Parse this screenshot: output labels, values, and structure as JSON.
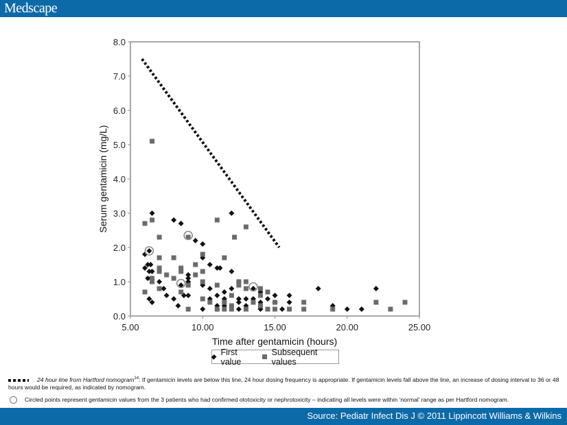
{
  "header": {
    "brand": "Medscape"
  },
  "footer": {
    "source": "Source: Pediatr Infect Dis J © 2011 Lippincott Williams & Wilkins"
  },
  "legend": {
    "first": "First value",
    "subsequent": "Subsequent values"
  },
  "footnotes": {
    "line_label": "24 hour line from Hartford nomogram",
    "line_sup": "14",
    "line_text": ": If gentamicin levels are below this line,  24 hour dosing frequency is appropriate. If gentamicin levels fall above the line, an increase of dosing interval to 36 or 48 hours would be required, as indicated by nomogram.",
    "circle_text": "Circled points represent gentamicin values from the 3 patients who had confirmed ototoxicity or nephrotoxicity – indicating all levels were within ‘normal’ range as per Hartford nomogram."
  },
  "chart_data": {
    "type": "scatter",
    "title": "",
    "xlabel": "Time after gentamicin (hours)",
    "ylabel": "Serum gentamicin (mg/L)",
    "xlim": [
      5,
      25
    ],
    "ylim": [
      0,
      8
    ],
    "x_ticks": [
      "5.00",
      "10.00",
      "15.00",
      "20.00",
      "25.00"
    ],
    "y_ticks": [
      "0.0",
      "1.0",
      "2.0",
      "3.0",
      "4.0",
      "5.0",
      "6.0",
      "7.0",
      "8.0"
    ],
    "grid": false,
    "legend_position": "bottom",
    "series": [
      {
        "name": "First value",
        "marker": "diamond",
        "color": "#111111",
        "points": [
          [
            6.0,
            1.8
          ],
          [
            6.0,
            1.4
          ],
          [
            6.2,
            1.5
          ],
          [
            6.3,
            1.3
          ],
          [
            6.4,
            1.5
          ],
          [
            6.5,
            1.3
          ],
          [
            6.2,
            1.1
          ],
          [
            6.4,
            1.1
          ],
          [
            6.3,
            0.5
          ],
          [
            6.5,
            0.4
          ],
          [
            6.5,
            3.0
          ],
          [
            6.3,
            1.9
          ],
          [
            7.0,
            1.0
          ],
          [
            7.3,
            0.8
          ],
          [
            7.5,
            0.6
          ],
          [
            8.0,
            2.8
          ],
          [
            8.5,
            2.7
          ],
          [
            8.0,
            0.5
          ],
          [
            8.3,
            0.3
          ],
          [
            8.5,
            0.9
          ],
          [
            8.7,
            0.6
          ],
          [
            9.0,
            1.2
          ],
          [
            9.0,
            1.1
          ],
          [
            9.0,
            1.0
          ],
          [
            9.0,
            0.6
          ],
          [
            9.5,
            2.2
          ],
          [
            10.0,
            2.1
          ],
          [
            10.0,
            1.7
          ],
          [
            10.0,
            0.9
          ],
          [
            10.0,
            0.2
          ],
          [
            10.5,
            1.5
          ],
          [
            10.5,
            0.8
          ],
          [
            10.5,
            0.5
          ],
          [
            11.0,
            1.4
          ],
          [
            11.2,
            1.4
          ],
          [
            11.0,
            0.6
          ],
          [
            11.0,
            0.3
          ],
          [
            11.5,
            0.7
          ],
          [
            11.5,
            0.5
          ],
          [
            11.5,
            0.3
          ],
          [
            11.0,
            0.2
          ],
          [
            12.0,
            3.0
          ],
          [
            12.0,
            1.3
          ],
          [
            12.0,
            0.8
          ],
          [
            12.5,
            1.0
          ],
          [
            12.5,
            0.5
          ],
          [
            12.5,
            0.4
          ],
          [
            12.5,
            0.2
          ],
          [
            13.0,
            0.5
          ],
          [
            13.0,
            0.3
          ],
          [
            13.5,
            0.8
          ],
          [
            13.5,
            0.5
          ],
          [
            14.0,
            0.7
          ],
          [
            14.0,
            0.4
          ],
          [
            14.0,
            0.2
          ],
          [
            14.5,
            0.5
          ],
          [
            15.0,
            0.6
          ],
          [
            15.0,
            0.4
          ],
          [
            15.5,
            0.2
          ],
          [
            16.0,
            0.6
          ],
          [
            16.0,
            0.4
          ],
          [
            18.0,
            0.8
          ],
          [
            19.0,
            0.3
          ],
          [
            20.0,
            0.2
          ],
          [
            21.0,
            0.2
          ],
          [
            22.0,
            0.8
          ]
        ]
      },
      {
        "name": "Subsequent values",
        "marker": "square",
        "color": "#6b6b6b",
        "points": [
          [
            6.0,
            2.7
          ],
          [
            6.5,
            2.8
          ],
          [
            6.5,
            5.1
          ],
          [
            6.0,
            0.7
          ],
          [
            6.5,
            1.0
          ],
          [
            6.5,
            1.1
          ],
          [
            7.0,
            2.3
          ],
          [
            7.0,
            1.7
          ],
          [
            7.0,
            1.4
          ],
          [
            7.0,
            1.3
          ],
          [
            7.0,
            0.8
          ],
          [
            7.5,
            1.2
          ],
          [
            8.0,
            1.1
          ],
          [
            8.0,
            1.7
          ],
          [
            8.5,
            1.4
          ],
          [
            8.5,
            1.3
          ],
          [
            8.5,
            0.7
          ],
          [
            9.0,
            2.3
          ],
          [
            9.0,
            0.9
          ],
          [
            9.0,
            0.2
          ],
          [
            9.5,
            1.5
          ],
          [
            9.5,
            1.2
          ],
          [
            10.0,
            1.8
          ],
          [
            10.0,
            1.3
          ],
          [
            10.0,
            1.0
          ],
          [
            10.0,
            0.5
          ],
          [
            10.5,
            0.4
          ],
          [
            11.0,
            2.8
          ],
          [
            11.0,
            0.9
          ],
          [
            11.0,
            0.2
          ],
          [
            11.5,
            1.7
          ],
          [
            11.5,
            0.4
          ],
          [
            11.5,
            0.2
          ],
          [
            12.0,
            0.6
          ],
          [
            12.0,
            0.3
          ],
          [
            12.0,
            0.2
          ],
          [
            12.2,
            2.3
          ],
          [
            12.5,
            0.9
          ],
          [
            12.5,
            1.0
          ],
          [
            13.0,
            2.6
          ],
          [
            13.0,
            1.0
          ],
          [
            13.0,
            0.8
          ],
          [
            13.0,
            0.2
          ],
          [
            13.5,
            0.4
          ],
          [
            14.0,
            0.8
          ],
          [
            14.0,
            0.6
          ],
          [
            14.0,
            0.3
          ],
          [
            14.5,
            0.7
          ],
          [
            14.5,
            0.2
          ],
          [
            15.0,
            0.4
          ],
          [
            15.0,
            0.2
          ],
          [
            16.0,
            0.2
          ],
          [
            17.0,
            0.4
          ],
          [
            17.0,
            0.2
          ],
          [
            19.0,
            0.2
          ],
          [
            22.0,
            0.4
          ],
          [
            23.0,
            0.2
          ],
          [
            24.0,
            0.4
          ]
        ]
      }
    ],
    "annotations": {
      "nomogram_24h_line": {
        "style": "dotted",
        "from": [
          5.8,
          7.5
        ],
        "to": [
          15.3,
          2.0
        ]
      },
      "circled_points": [
        [
          6.3,
          1.9
        ],
        [
          9.0,
          2.35
        ],
        [
          8.5,
          0.95
        ],
        [
          13.5,
          0.85
        ]
      ]
    }
  }
}
